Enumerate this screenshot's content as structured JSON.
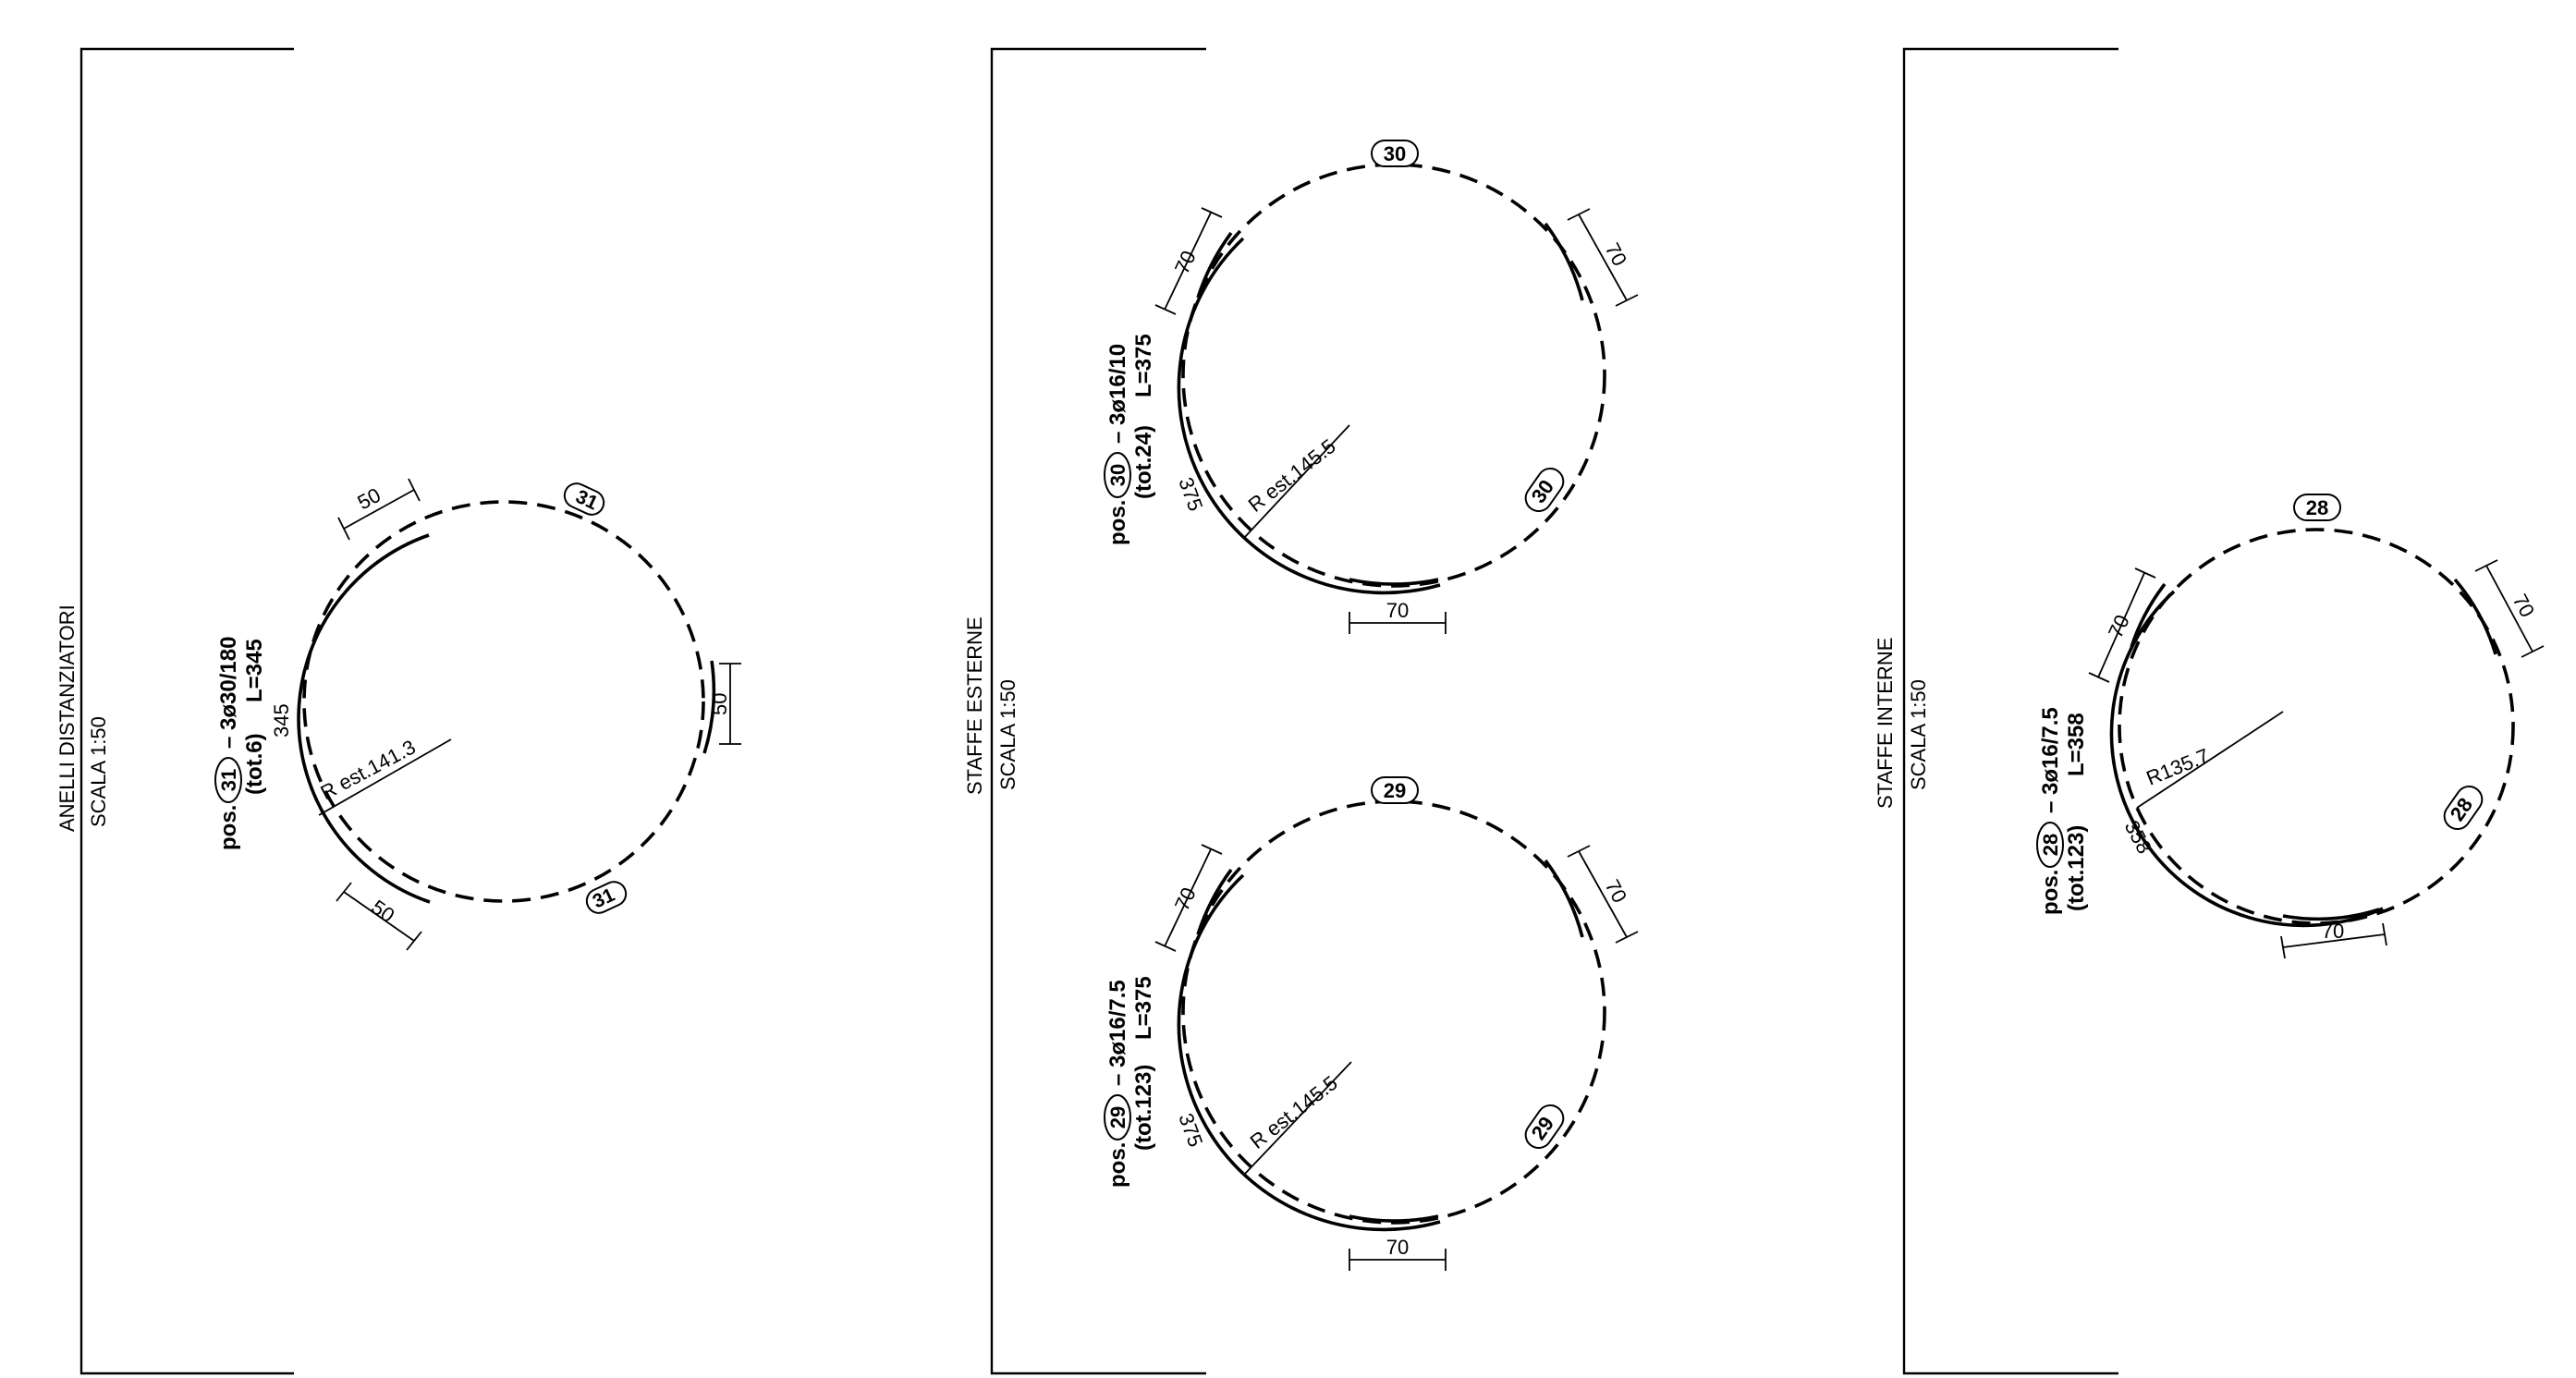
{
  "sections": [
    {
      "title": "ANELLI DISTANZIATORI",
      "scale": "SCALA 1:50"
    },
    {
      "title": "STAFFE  ESTERNE",
      "scale": "SCALA 1:50"
    },
    {
      "title": "STAFFE  INTERNE",
      "scale": "SCALA 1:50"
    }
  ],
  "ring31": {
    "pos_word": "pos.",
    "mark": "31",
    "spec": "– 3ø30/180",
    "tot": "(tot.6)",
    "length": "L=345",
    "radius_label": "R est.141.3",
    "arc_length": "345",
    "overlap_top": "50",
    "overlap_right": "50",
    "overlap_bottom": "50",
    "tag_top": "31",
    "tag_bottom": "31"
  },
  "ring30": {
    "pos_word": "pos.",
    "mark": "30",
    "spec": "– 3ø16/10",
    "tot": "(tot.24)",
    "length": "L=375",
    "radius_label": "R est.145.5",
    "arc_length": "375",
    "overlap_left": "70",
    "overlap_right": "70",
    "overlap_bottom": "70",
    "tag_top": "30",
    "tag_side": "30"
  },
  "ring29": {
    "pos_word": "pos.",
    "mark": "29",
    "spec": "– 3ø16/7.5",
    "tot": "(tot.123)",
    "length": "L=375",
    "radius_label": "R est.145.5",
    "arc_length": "375",
    "overlap_left": "70",
    "overlap_right": "70",
    "overlap_bottom": "70",
    "tag_top": "29",
    "tag_side": "29"
  },
  "ring28": {
    "pos_word": "pos.",
    "mark": "28",
    "spec": "– 3ø16/7.5",
    "tot": "(tot.123)",
    "length": "L=358",
    "radius_label": "R135.7",
    "arc_length": "358",
    "overlap_left": "70",
    "overlap_right": "70",
    "overlap_bottom": "70",
    "tag_top": "28",
    "tag_side": "28"
  }
}
